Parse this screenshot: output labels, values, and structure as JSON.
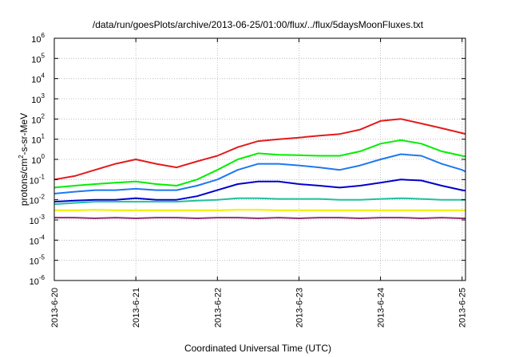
{
  "chart_data": {
    "type": "line",
    "title": "/data/run/goesPlots/archive/2013-06-25/01:00/flux/../flux/5daysMoonFluxes.txt",
    "xlabel": "Coordinated Universal Time (UTC)",
    "ylabel": {
      "pre": "protons/cm",
      "sup": "2",
      "post": "-s-sr-MeV"
    },
    "x_ticks": [
      "2013-6-20",
      "2013-6-21",
      "2013-6-22",
      "2013-6-23",
      "2013-6-24",
      "2013-6-25"
    ],
    "xlim": [
      "2013-6-20",
      "2013-6-25 01:00"
    ],
    "y_scale": "log",
    "ylim": [
      1e-06,
      1000000.0
    ],
    "y_ticks": [
      {
        "base": "10",
        "exp": "-6"
      },
      {
        "base": "10",
        "exp": "-5"
      },
      {
        "base": "10",
        "exp": "-4"
      },
      {
        "base": "10",
        "exp": "-3"
      },
      {
        "base": "10",
        "exp": "-2"
      },
      {
        "base": "10",
        "exp": "-1"
      },
      {
        "base": "10",
        "exp": "0"
      },
      {
        "base": "10",
        "exp": "1"
      },
      {
        "base": "10",
        "exp": "2"
      },
      {
        "base": "10",
        "exp": "3"
      },
      {
        "base": "10",
        "exp": "4"
      },
      {
        "base": "10",
        "exp": "5"
      },
      {
        "base": "10",
        "exp": "6"
      }
    ],
    "grid": true,
    "series": [
      {
        "color": "#e41a1c",
        "x": [
          "2013-6-20 00:00",
          "2013-6-20 06:00",
          "2013-6-20 12:00",
          "2013-6-20 18:00",
          "2013-6-21 00:00",
          "2013-6-21 06:00",
          "2013-6-21 12:00",
          "2013-6-21 18:00",
          "2013-6-22 00:00",
          "2013-6-22 06:00",
          "2013-6-22 12:00",
          "2013-6-22 18:00",
          "2013-6-23 00:00",
          "2013-6-23 06:00",
          "2013-6-23 12:00",
          "2013-6-23 18:00",
          "2013-6-24 00:00",
          "2013-6-24 06:00",
          "2013-6-24 12:00",
          "2013-6-24 18:00",
          "2013-6-25 00:00",
          "2013-6-25 01:00"
        ],
        "y": [
          0.1,
          0.15,
          0.3,
          0.6,
          1.0,
          0.6,
          0.4,
          0.8,
          1.5,
          4,
          8,
          10,
          12,
          15,
          18,
          30,
          80,
          100,
          60,
          35,
          20,
          18
        ]
      },
      {
        "color": "#00ee00",
        "x": [
          "2013-6-20 00:00",
          "2013-6-20 06:00",
          "2013-6-20 12:00",
          "2013-6-20 18:00",
          "2013-6-21 00:00",
          "2013-6-21 06:00",
          "2013-6-21 12:00",
          "2013-6-21 18:00",
          "2013-6-22 00:00",
          "2013-6-22 06:00",
          "2013-6-22 12:00",
          "2013-6-22 18:00",
          "2013-6-23 00:00",
          "2013-6-23 06:00",
          "2013-6-23 12:00",
          "2013-6-23 18:00",
          "2013-6-24 00:00",
          "2013-6-24 06:00",
          "2013-6-24 12:00",
          "2013-6-24 18:00",
          "2013-6-25 00:00",
          "2013-6-25 01:00"
        ],
        "y": [
          0.04,
          0.05,
          0.06,
          0.07,
          0.08,
          0.06,
          0.05,
          0.1,
          0.3,
          1.0,
          2.0,
          1.7,
          1.6,
          1.5,
          1.5,
          2.5,
          6,
          9,
          6,
          2.5,
          1.5,
          1.4
        ]
      },
      {
        "color": "#1e78f0",
        "x": [
          "2013-6-20 00:00",
          "2013-6-20 06:00",
          "2013-6-20 12:00",
          "2013-6-20 18:00",
          "2013-6-21 00:00",
          "2013-6-21 06:00",
          "2013-6-21 12:00",
          "2013-6-21 18:00",
          "2013-6-22 00:00",
          "2013-6-22 06:00",
          "2013-6-22 12:00",
          "2013-6-22 18:00",
          "2013-6-23 00:00",
          "2013-6-23 06:00",
          "2013-6-23 12:00",
          "2013-6-23 18:00",
          "2013-6-24 00:00",
          "2013-6-24 06:00",
          "2013-6-24 12:00",
          "2013-6-24 18:00",
          "2013-6-25 00:00",
          "2013-6-25 01:00"
        ],
        "y": [
          0.02,
          0.025,
          0.03,
          0.03,
          0.035,
          0.03,
          0.03,
          0.05,
          0.1,
          0.3,
          0.6,
          0.6,
          0.5,
          0.4,
          0.3,
          0.5,
          1.0,
          1.8,
          1.5,
          0.6,
          0.3,
          0.25
        ]
      },
      {
        "color": "#0000cc",
        "x": [
          "2013-6-20 00:00",
          "2013-6-20 06:00",
          "2013-6-20 12:00",
          "2013-6-20 18:00",
          "2013-6-21 00:00",
          "2013-6-21 06:00",
          "2013-6-21 12:00",
          "2013-6-21 18:00",
          "2013-6-22 00:00",
          "2013-6-22 06:00",
          "2013-6-22 12:00",
          "2013-6-22 18:00",
          "2013-6-23 00:00",
          "2013-6-23 06:00",
          "2013-6-23 12:00",
          "2013-6-23 18:00",
          "2013-6-24 00:00",
          "2013-6-24 06:00",
          "2013-6-24 12:00",
          "2013-6-24 18:00",
          "2013-6-25 00:00",
          "2013-6-25 01:00"
        ],
        "y": [
          0.008,
          0.009,
          0.01,
          0.01,
          0.012,
          0.01,
          0.01,
          0.015,
          0.03,
          0.06,
          0.08,
          0.08,
          0.06,
          0.05,
          0.04,
          0.05,
          0.07,
          0.1,
          0.09,
          0.05,
          0.03,
          0.028
        ]
      },
      {
        "color": "#20c0a0",
        "x": [
          "2013-6-20 00:00",
          "2013-6-20 06:00",
          "2013-6-20 12:00",
          "2013-6-20 18:00",
          "2013-6-21 00:00",
          "2013-6-21 06:00",
          "2013-6-21 12:00",
          "2013-6-21 18:00",
          "2013-6-22 00:00",
          "2013-6-22 06:00",
          "2013-6-22 12:00",
          "2013-6-22 18:00",
          "2013-6-23 00:00",
          "2013-6-23 06:00",
          "2013-6-23 12:00",
          "2013-6-23 18:00",
          "2013-6-24 00:00",
          "2013-6-24 06:00",
          "2013-6-24 12:00",
          "2013-6-24 18:00",
          "2013-6-25 00:00",
          "2013-6-25 01:00"
        ],
        "y": [
          0.006,
          0.007,
          0.008,
          0.008,
          0.008,
          0.008,
          0.008,
          0.009,
          0.01,
          0.012,
          0.012,
          0.011,
          0.011,
          0.011,
          0.01,
          0.01,
          0.011,
          0.012,
          0.011,
          0.01,
          0.01,
          0.01
        ]
      },
      {
        "color": "#f0f000",
        "x": [
          "2013-6-20 00:00",
          "2013-6-20 06:00",
          "2013-6-20 12:00",
          "2013-6-20 18:00",
          "2013-6-21 00:00",
          "2013-6-21 06:00",
          "2013-6-21 12:00",
          "2013-6-21 18:00",
          "2013-6-22 00:00",
          "2013-6-22 06:00",
          "2013-6-22 12:00",
          "2013-6-22 18:00",
          "2013-6-23 00:00",
          "2013-6-23 06:00",
          "2013-6-23 12:00",
          "2013-6-23 18:00",
          "2013-6-24 00:00",
          "2013-6-24 06:00",
          "2013-6-24 12:00",
          "2013-6-24 18:00",
          "2013-6-25 00:00",
          "2013-6-25 01:00"
        ],
        "y": [
          0.003,
          0.003,
          0.0032,
          0.003,
          0.003,
          0.003,
          0.003,
          0.003,
          0.003,
          0.0032,
          0.0032,
          0.003,
          0.003,
          0.003,
          0.003,
          0.003,
          0.003,
          0.003,
          0.003,
          0.003,
          0.003,
          0.003
        ]
      },
      {
        "color": "#903070",
        "x": [
          "2013-6-20 00:00",
          "2013-6-20 06:00",
          "2013-6-20 12:00",
          "2013-6-20 18:00",
          "2013-6-21 00:00",
          "2013-6-21 06:00",
          "2013-6-21 12:00",
          "2013-6-21 18:00",
          "2013-6-22 00:00",
          "2013-6-22 06:00",
          "2013-6-22 12:00",
          "2013-6-22 18:00",
          "2013-6-23 00:00",
          "2013-6-23 06:00",
          "2013-6-23 12:00",
          "2013-6-23 18:00",
          "2013-6-24 00:00",
          "2013-6-24 06:00",
          "2013-6-24 12:00",
          "2013-6-24 18:00",
          "2013-6-25 00:00",
          "2013-6-25 01:00"
        ],
        "y": [
          0.0013,
          0.0013,
          0.0012,
          0.0013,
          0.0012,
          0.0013,
          0.0013,
          0.0012,
          0.0013,
          0.0013,
          0.0012,
          0.0013,
          0.0012,
          0.0013,
          0.0013,
          0.0012,
          0.0013,
          0.0013,
          0.0012,
          0.0013,
          0.0012,
          0.0012
        ]
      }
    ]
  }
}
